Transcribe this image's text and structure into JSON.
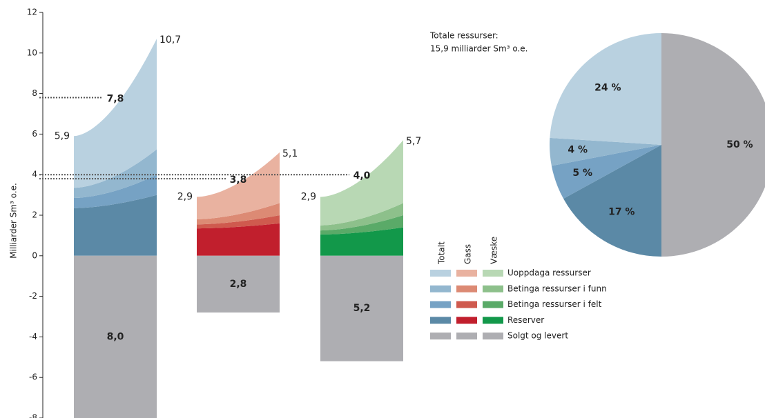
{
  "chart_data": [
    {
      "type": "fan",
      "ylabel": "Milliarder Sm³ o.e.",
      "ylim": [
        -8,
        12
      ],
      "yticks": [
        -8,
        -6,
        -4,
        -2,
        0,
        2,
        4,
        6,
        8,
        10,
        12
      ],
      "series_names": [
        "Uoppdaga ressurser",
        "Betinga ressurser i funn",
        "Betinga ressurser i felt",
        "Reserver",
        "Solgt og levert"
      ],
      "columns": [
        {
          "name": "Totalt",
          "colors": [
            "#b9d1e0",
            "#93b7cf",
            "#76a2c4",
            "#5b89a6",
            "#aeaeb2"
          ],
          "start": [
            2.55,
            0.5,
            0.5,
            2.35
          ],
          "end": [
            5.45,
            1.25,
            1.0,
            3.0
          ],
          "sold": -8.0,
          "sold_label": "8,0",
          "start_total": {
            "value": 5.9,
            "label": "5,9"
          },
          "end_total": {
            "value": 10.7,
            "label": "10,7"
          },
          "mid": {
            "value": 7.8,
            "label": "7,8"
          }
        },
        {
          "name": "Gass",
          "colors": [
            "#e9b2a0",
            "#dc8a74",
            "#cf5a4e",
            "#c11f2d",
            "#aeaeb2"
          ],
          "start": [
            1.1,
            0.25,
            0.2,
            1.35
          ],
          "end": [
            2.5,
            0.6,
            0.4,
            1.6
          ],
          "sold": -2.8,
          "sold_label": "2,8",
          "start_total": {
            "value": 2.9,
            "label": "2,9"
          },
          "end_total": {
            "value": 5.1,
            "label": "5,1"
          },
          "mid": {
            "value": 3.8,
            "label": "3,8"
          }
        },
        {
          "name": "Væske",
          "colors": [
            "#b8d8b4",
            "#8dc08b",
            "#5aaa68",
            "#12984a",
            "#aeaeb2"
          ],
          "start": [
            1.4,
            0.25,
            0.2,
            1.05
          ],
          "end": [
            3.1,
            0.6,
            0.6,
            1.4
          ],
          "sold": -5.2,
          "sold_label": "5,2",
          "start_total": {
            "value": 2.9,
            "label": "2,9"
          },
          "end_total": {
            "value": 5.7,
            "label": "5,7"
          },
          "mid": {
            "value": 4.0,
            "label": "4,0"
          }
        }
      ]
    },
    {
      "type": "pie",
      "title": [
        "Totale ressurser:",
        "15,9 milliarder Sm³ o.e."
      ],
      "values": [
        50,
        17,
        5,
        4,
        24
      ],
      "value_labels": [
        "50 %",
        "17 %",
        "5 %",
        "4 %",
        "24 %"
      ],
      "colors": [
        "#aeaeb2",
        "#5b89a6",
        "#76a2c4",
        "#93b7cf",
        "#b9d1e0"
      ]
    }
  ]
}
